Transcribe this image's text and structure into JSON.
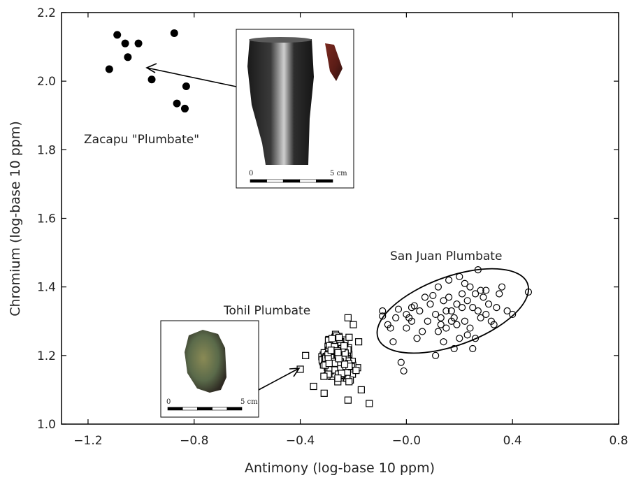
{
  "chart_data": {
    "type": "scatter",
    "title": "",
    "xlabel": "Antimony (log-base 10 ppm)",
    "ylabel": "Chromium (log-base 10 ppm)",
    "xlim": [
      -1.3,
      0.8
    ],
    "ylim": [
      1.0,
      2.2
    ],
    "x_ticks": [
      -1.2,
      -0.8,
      -0.4,
      0.0,
      0.4,
      0.8
    ],
    "x_tick_labels": [
      "−1.2",
      "−0.8",
      "−0.4",
      "−0.0",
      "0.4",
      "0.8"
    ],
    "y_ticks": [
      1.0,
      1.2,
      1.4,
      1.6,
      1.8,
      2.0,
      2.2
    ],
    "y_tick_labels": [
      "1.0",
      "1.2",
      "1.4",
      "1.6",
      "1.8",
      "2.0",
      "2.2"
    ],
    "grid": false,
    "series": [
      {
        "name": "Zacapu \"Plumbate\"",
        "marker": "filled-circle",
        "color": "#000000",
        "points": [
          [
            -1.09,
            2.135
          ],
          [
            -1.06,
            2.11
          ],
          [
            -1.01,
            2.11
          ],
          [
            -1.05,
            2.07
          ],
          [
            -1.12,
            2.035
          ],
          [
            -0.96,
            2.005
          ],
          [
            -0.875,
            2.14
          ],
          [
            -0.83,
            1.985
          ],
          [
            -0.865,
            1.935
          ],
          [
            -0.835,
            1.92
          ]
        ]
      },
      {
        "name": "Tohil Plumbate",
        "marker": "open-square",
        "color": "#000000",
        "center": [
          -0.26,
          1.19
        ],
        "spread": [
          0.05,
          0.04
        ],
        "count": 320,
        "outliers": [
          [
            -0.4,
            1.16
          ],
          [
            -0.38,
            1.2
          ],
          [
            -0.22,
            1.31
          ],
          [
            -0.2,
            1.29
          ],
          [
            -0.14,
            1.06
          ],
          [
            -0.31,
            1.09
          ],
          [
            -0.22,
            1.07
          ],
          [
            -0.17,
            1.1
          ],
          [
            -0.35,
            1.11
          ],
          [
            -0.18,
            1.24
          ]
        ]
      },
      {
        "name": "San Juan Plumbate",
        "marker": "open-circle",
        "color": "#000000",
        "points": [
          [
            -0.09,
            1.33
          ],
          [
            -0.09,
            1.315
          ],
          [
            -0.07,
            1.29
          ],
          [
            -0.06,
            1.28
          ],
          [
            -0.05,
            1.24
          ],
          [
            -0.02,
            1.18
          ],
          [
            -0.01,
            1.155
          ],
          [
            -0.04,
            1.31
          ],
          [
            -0.03,
            1.335
          ],
          [
            0.0,
            1.28
          ],
          [
            0.0,
            1.32
          ],
          [
            0.02,
            1.34
          ],
          [
            0.03,
            1.345
          ],
          [
            0.02,
            1.3
          ],
          [
            0.04,
            1.25
          ],
          [
            0.05,
            1.33
          ],
          [
            0.07,
            1.37
          ],
          [
            0.08,
            1.3
          ],
          [
            0.09,
            1.35
          ],
          [
            0.1,
            1.375
          ],
          [
            0.11,
            1.32
          ],
          [
            0.12,
            1.4
          ],
          [
            0.13,
            1.29
          ],
          [
            0.14,
            1.36
          ],
          [
            0.15,
            1.33
          ],
          [
            0.16,
            1.42
          ],
          [
            0.17,
            1.3
          ],
          [
            0.18,
            1.31
          ],
          [
            0.19,
            1.35
          ],
          [
            0.2,
            1.43
          ],
          [
            0.21,
            1.38
          ],
          [
            0.22,
            1.3
          ],
          [
            0.23,
            1.36
          ],
          [
            0.24,
            1.4
          ],
          [
            0.25,
            1.34
          ],
          [
            0.26,
            1.38
          ],
          [
            0.27,
            1.45
          ],
          [
            0.28,
            1.39
          ],
          [
            0.29,
            1.37
          ],
          [
            0.3,
            1.32
          ],
          [
            0.31,
            1.35
          ],
          [
            0.32,
            1.3
          ],
          [
            0.33,
            1.29
          ],
          [
            0.34,
            1.34
          ],
          [
            0.35,
            1.38
          ],
          [
            0.36,
            1.4
          ],
          [
            0.38,
            1.33
          ],
          [
            0.4,
            1.32
          ],
          [
            0.46,
            1.385
          ],
          [
            0.12,
            1.27
          ],
          [
            0.15,
            1.28
          ],
          [
            0.18,
            1.22
          ],
          [
            0.2,
            1.25
          ],
          [
            0.23,
            1.26
          ],
          [
            0.24,
            1.28
          ],
          [
            0.26,
            1.25
          ],
          [
            0.28,
            1.31
          ],
          [
            0.22,
            1.41
          ],
          [
            0.17,
            1.33
          ],
          [
            0.14,
            1.24
          ],
          [
            0.11,
            1.2
          ],
          [
            0.06,
            1.27
          ],
          [
            0.01,
            1.31
          ],
          [
            0.25,
            1.22
          ],
          [
            0.19,
            1.29
          ],
          [
            0.3,
            1.39
          ],
          [
            0.27,
            1.33
          ],
          [
            0.21,
            1.34
          ],
          [
            0.16,
            1.37
          ],
          [
            0.13,
            1.31
          ]
        ],
        "ellipse": {
          "cx": 0.175,
          "cy": 1.33,
          "rx": 0.3,
          "ry": 0.1,
          "angle_deg": -20
        }
      }
    ],
    "annotations": [
      {
        "text": "Zacapu \"Plumbate\""
      },
      {
        "text": "Tohil Plumbate"
      },
      {
        "text": "San Juan Plumbate"
      }
    ],
    "insets": [
      {
        "scale_start": "0",
        "scale_end": "5 cm"
      },
      {
        "scale_start": "0",
        "scale_end": "5 cm"
      }
    ]
  }
}
